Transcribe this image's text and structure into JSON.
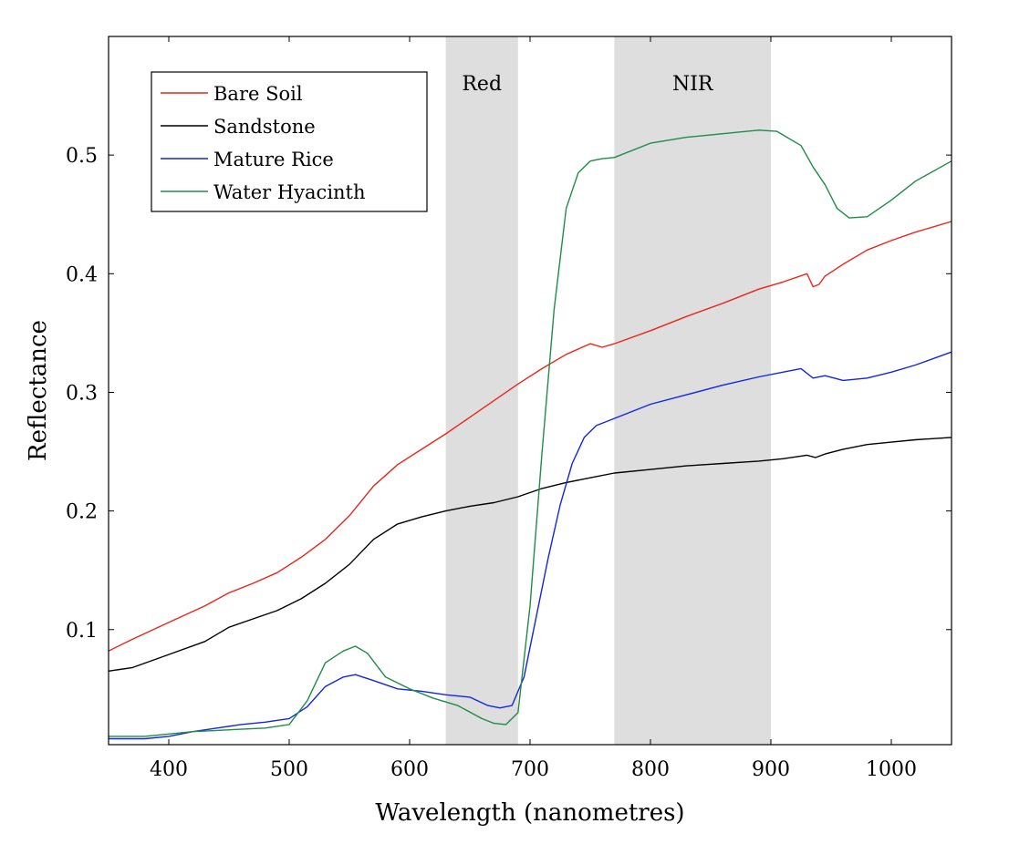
{
  "chart_data": {
    "type": "line",
    "xlabel": "Wavelength (nanometres)",
    "ylabel": "Reflectance",
    "xlim": [
      350,
      1050
    ],
    "ylim": [
      0.003,
      0.6
    ],
    "x_ticks": [
      400,
      500,
      600,
      700,
      800,
      900,
      1000
    ],
    "x_tick_labels": [
      "400",
      "500",
      "600",
      "700",
      "800",
      "900",
      "1000"
    ],
    "y_ticks": [
      0.1,
      0.2,
      0.3,
      0.4,
      0.5
    ],
    "y_tick_labels": [
      "0.1",
      "0.2",
      "0.3",
      "0.4",
      "0.5"
    ],
    "grid": false,
    "legend_position": "top-left",
    "bands": [
      {
        "label": "Red",
        "range": [
          630,
          690
        ],
        "color": "#dedede"
      },
      {
        "label": "NIR",
        "range": [
          770,
          900
        ],
        "color": "#dedede"
      }
    ],
    "series": [
      {
        "name": "Bare Soil",
        "color": "#e8271b",
        "x": [
          350,
          370,
          400,
          430,
          450,
          470,
          490,
          510,
          530,
          550,
          570,
          590,
          610,
          630,
          650,
          670,
          690,
          710,
          730,
          750,
          760,
          770,
          800,
          830,
          860,
          890,
          910,
          930,
          935,
          940,
          945,
          960,
          980,
          1000,
          1020,
          1050
        ],
        "y": [
          0.082,
          0.092,
          0.106,
          0.12,
          0.131,
          0.139,
          0.148,
          0.161,
          0.176,
          0.196,
          0.221,
          0.239,
          0.252,
          0.265,
          0.279,
          0.293,
          0.307,
          0.32,
          0.332,
          0.341,
          0.338,
          0.341,
          0.352,
          0.364,
          0.375,
          0.387,
          0.393,
          0.4,
          0.389,
          0.391,
          0.398,
          0.408,
          0.42,
          0.428,
          0.435,
          0.444
        ]
      },
      {
        "name": "Sandstone",
        "color": "#000000",
        "x": [
          350,
          370,
          400,
          430,
          450,
          470,
          490,
          510,
          530,
          550,
          570,
          590,
          610,
          630,
          650,
          670,
          690,
          710,
          730,
          750,
          770,
          800,
          830,
          860,
          890,
          910,
          930,
          937,
          945,
          960,
          980,
          1000,
          1020,
          1050
        ],
        "y": [
          0.065,
          0.068,
          0.079,
          0.09,
          0.102,
          0.109,
          0.116,
          0.126,
          0.139,
          0.155,
          0.176,
          0.189,
          0.195,
          0.2,
          0.204,
          0.207,
          0.212,
          0.219,
          0.224,
          0.228,
          0.232,
          0.235,
          0.238,
          0.24,
          0.242,
          0.244,
          0.247,
          0.245,
          0.248,
          0.252,
          0.256,
          0.258,
          0.26,
          0.262
        ]
      },
      {
        "name": "Mature Rice",
        "color": "#1127e0",
        "x": [
          350,
          380,
          400,
          420,
          440,
          460,
          480,
          500,
          515,
          530,
          545,
          555,
          570,
          590,
          610,
          630,
          650,
          665,
          675,
          685,
          695,
          705,
          715,
          725,
          735,
          745,
          755,
          770,
          800,
          830,
          860,
          890,
          910,
          925,
          935,
          945,
          960,
          980,
          1000,
          1020,
          1050
        ],
        "y": [
          0.008,
          0.008,
          0.01,
          0.014,
          0.017,
          0.02,
          0.022,
          0.025,
          0.035,
          0.052,
          0.06,
          0.062,
          0.057,
          0.05,
          0.048,
          0.045,
          0.043,
          0.036,
          0.034,
          0.036,
          0.06,
          0.11,
          0.16,
          0.205,
          0.24,
          0.262,
          0.272,
          0.278,
          0.29,
          0.298,
          0.306,
          0.313,
          0.317,
          0.32,
          0.312,
          0.314,
          0.31,
          0.312,
          0.317,
          0.323,
          0.334
        ]
      },
      {
        "name": "Water Hyacinth",
        "color": "#1f8c47",
        "x": [
          350,
          380,
          400,
          420,
          440,
          460,
          480,
          500,
          515,
          530,
          545,
          555,
          565,
          580,
          600,
          620,
          640,
          660,
          670,
          680,
          690,
          700,
          710,
          720,
          730,
          740,
          750,
          760,
          770,
          800,
          830,
          860,
          890,
          905,
          925,
          935,
          945,
          955,
          965,
          980,
          1000,
          1020,
          1050
        ],
        "y": [
          0.01,
          0.01,
          0.012,
          0.014,
          0.015,
          0.016,
          0.017,
          0.02,
          0.04,
          0.072,
          0.082,
          0.086,
          0.08,
          0.06,
          0.05,
          0.042,
          0.036,
          0.025,
          0.021,
          0.02,
          0.03,
          0.12,
          0.25,
          0.37,
          0.455,
          0.485,
          0.495,
          0.497,
          0.498,
          0.51,
          0.515,
          0.518,
          0.521,
          0.52,
          0.508,
          0.49,
          0.475,
          0.455,
          0.447,
          0.448,
          0.462,
          0.478,
          0.495
        ]
      }
    ]
  }
}
